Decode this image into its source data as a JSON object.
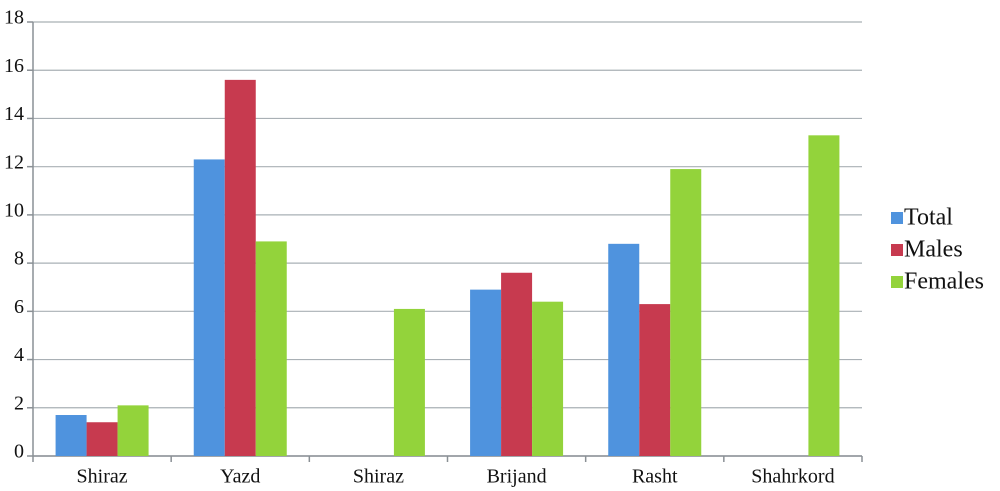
{
  "chart_data": {
    "type": "bar",
    "categories": [
      "Shiraz",
      "Yazd",
      "Shiraz",
      "Brijand",
      "Rasht",
      "Shahrkord"
    ],
    "series": [
      {
        "name": "Total",
        "color": "#4f93de",
        "values": [
          1.7,
          12.3,
          null,
          6.9,
          8.8,
          null
        ]
      },
      {
        "name": "Males",
        "color": "#c73a4f",
        "values": [
          1.4,
          15.6,
          null,
          7.6,
          6.3,
          null
        ]
      },
      {
        "name": "Females",
        "color": "#93d33b",
        "values": [
          2.1,
          8.9,
          6.1,
          6.4,
          11.9,
          13.3
        ]
      }
    ],
    "ylim": [
      0,
      18
    ],
    "yticks": [
      0,
      2,
      4,
      6,
      8,
      10,
      12,
      14,
      16,
      18
    ],
    "grid": true
  }
}
